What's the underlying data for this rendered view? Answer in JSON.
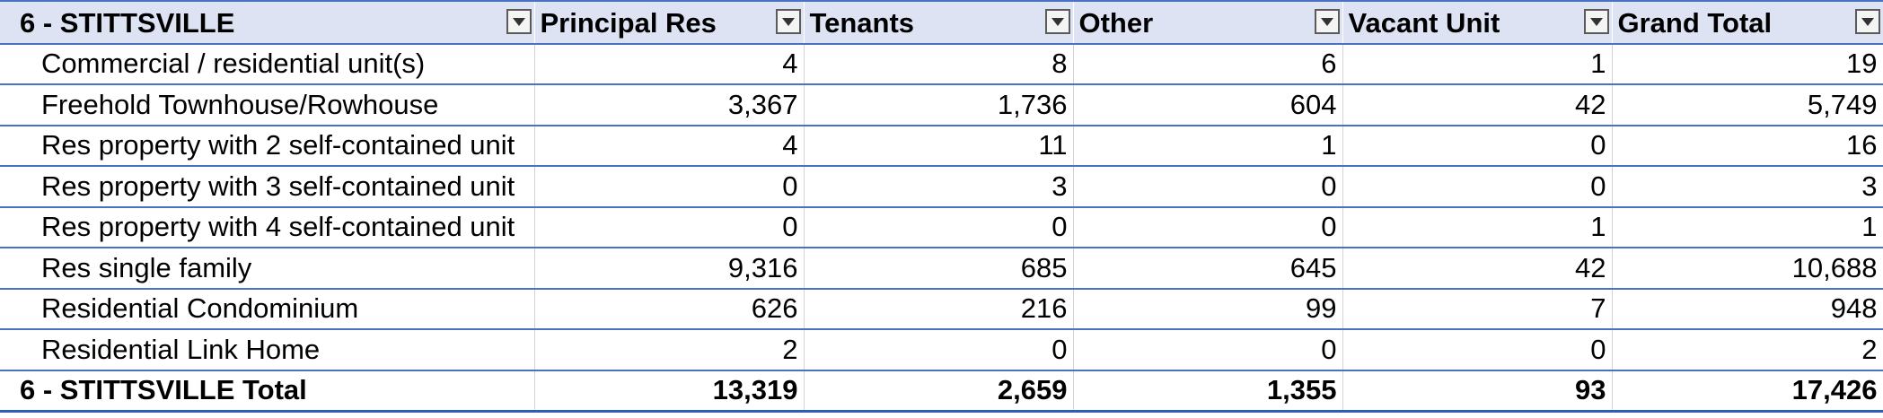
{
  "pivot": {
    "row_header": "6 - STITTSVILLE",
    "columns": [
      "Principal Res",
      "Tenants",
      "Other",
      "Vacant Unit",
      "Grand Total"
    ],
    "rows": [
      {
        "label": "Commercial / residential unit(s)",
        "values": [
          "4",
          "8",
          "6",
          "1",
          "19"
        ]
      },
      {
        "label": "Freehold Townhouse/Rowhouse",
        "values": [
          "3,367",
          "1,736",
          "604",
          "42",
          "5,749"
        ]
      },
      {
        "label": "Res property with 2 self-contained unit",
        "values": [
          "4",
          "11",
          "1",
          "0",
          "16"
        ]
      },
      {
        "label": "Res property with 3 self-contained unit",
        "values": [
          "0",
          "3",
          "0",
          "0",
          "3"
        ]
      },
      {
        "label": "Res property with 4 self-contained unit",
        "values": [
          "0",
          "0",
          "0",
          "1",
          "1"
        ]
      },
      {
        "label": "Res single family",
        "values": [
          "9,316",
          "685",
          "645",
          "42",
          "10,688"
        ]
      },
      {
        "label": "Residential Condominium",
        "values": [
          "626",
          "216",
          "99",
          "7",
          "948"
        ]
      },
      {
        "label": "Residential Link Home",
        "values": [
          "2",
          "0",
          "0",
          "0",
          "2"
        ]
      }
    ],
    "total": {
      "label": "6 - STITTSVILLE Total",
      "values": [
        "13,319",
        "2,659",
        "1,355",
        "93",
        "17,426"
      ]
    },
    "icons": {
      "filter_dropdown": "dropdown-arrow-icon"
    },
    "colors": {
      "header_bg": "#dde3f3",
      "row_border": "#4a72c4"
    }
  }
}
